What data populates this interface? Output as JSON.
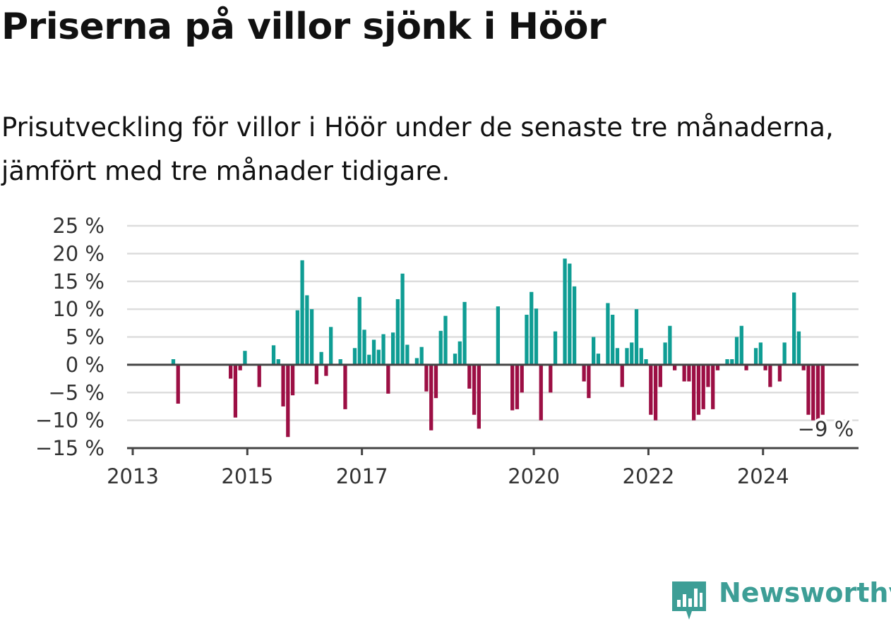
{
  "title": "Priserna på villor sjönk i Höör",
  "subtitle": "Prisutveckling för villor i Höör under de senaste tre månaderna, jämfört med tre månader tidigare.",
  "brand": {
    "name": "Newsworthy",
    "color": "#3d9e96"
  },
  "colors": {
    "positive": "#0f9d94",
    "negative": "#9c0f44",
    "grid": "#dddddd",
    "axis": "#444444"
  },
  "chart_data": {
    "type": "bar",
    "y_unit": "%",
    "ylim": [
      -15,
      25
    ],
    "y_ticks": [
      25,
      20,
      15,
      10,
      5,
      0,
      -5,
      -10,
      -15
    ],
    "y_tick_labels": [
      "25 %",
      "20 %",
      "15 %",
      "10 %",
      "5 %",
      "0 %",
      "−5 %",
      "−10 %",
      "−15 %"
    ],
    "x_ticks": [
      "2013",
      "2015",
      "2017",
      "2020",
      "2022",
      "2024"
    ],
    "grid": true,
    "last_value_label": "−9 %",
    "series": [
      {
        "values": [
          {
            "date": "2013-09",
            "value": 1
          },
          {
            "date": "2013-10",
            "value": -7
          },
          {
            "date": "2014-09",
            "value": -2.5
          },
          {
            "date": "2014-10",
            "value": -9.5
          },
          {
            "date": "2014-11",
            "value": -1
          },
          {
            "date": "2014-12",
            "value": 2.5
          },
          {
            "date": "2015-03",
            "value": -4
          },
          {
            "date": "2015-06",
            "value": 3.5
          },
          {
            "date": "2015-07",
            "value": 1
          },
          {
            "date": "2015-08",
            "value": -7.5
          },
          {
            "date": "2015-09",
            "value": -13
          },
          {
            "date": "2015-10",
            "value": -5.5
          },
          {
            "date": "2015-11",
            "value": 9.8
          },
          {
            "date": "2015-12",
            "value": 18.8
          },
          {
            "date": "2016-01",
            "value": 12.5
          },
          {
            "date": "2016-02",
            "value": 10
          },
          {
            "date": "2016-03",
            "value": -3.5
          },
          {
            "date": "2016-04",
            "value": 2.3
          },
          {
            "date": "2016-05",
            "value": -2
          },
          {
            "date": "2016-06",
            "value": 6.8
          },
          {
            "date": "2016-08",
            "value": 1
          },
          {
            "date": "2016-09",
            "value": -8
          },
          {
            "date": "2016-11",
            "value": 3
          },
          {
            "date": "2016-12",
            "value": 12.2
          },
          {
            "date": "2017-01",
            "value": 6.3
          },
          {
            "date": "2017-02",
            "value": 1.8
          },
          {
            "date": "2017-03",
            "value": 4.5
          },
          {
            "date": "2017-04",
            "value": 2.7
          },
          {
            "date": "2017-05",
            "value": 5.5
          },
          {
            "date": "2017-06",
            "value": -5.2
          },
          {
            "date": "2017-07",
            "value": 5.8
          },
          {
            "date": "2017-08",
            "value": 11.8
          },
          {
            "date": "2017-09",
            "value": 16.4
          },
          {
            "date": "2017-10",
            "value": 3.6
          },
          {
            "date": "2017-12",
            "value": 1.2
          },
          {
            "date": "2018-01",
            "value": 3.2
          },
          {
            "date": "2018-02",
            "value": -4.8
          },
          {
            "date": "2018-03",
            "value": -11.8
          },
          {
            "date": "2018-04",
            "value": -6
          },
          {
            "date": "2018-05",
            "value": 6.1
          },
          {
            "date": "2018-06",
            "value": 8.8
          },
          {
            "date": "2018-08",
            "value": 2
          },
          {
            "date": "2018-09",
            "value": 4.2
          },
          {
            "date": "2018-10",
            "value": 11.3
          },
          {
            "date": "2018-11",
            "value": -4.3
          },
          {
            "date": "2018-12",
            "value": -9
          },
          {
            "date": "2019-01",
            "value": -11.5
          },
          {
            "date": "2019-05",
            "value": 10.5
          },
          {
            "date": "2019-08",
            "value": -8.2
          },
          {
            "date": "2019-09",
            "value": -8
          },
          {
            "date": "2019-10",
            "value": -5
          },
          {
            "date": "2019-11",
            "value": 9
          },
          {
            "date": "2019-12",
            "value": 13.1
          },
          {
            "date": "2020-01",
            "value": 10.1
          },
          {
            "date": "2020-02",
            "value": -10
          },
          {
            "date": "2020-04",
            "value": -5
          },
          {
            "date": "2020-05",
            "value": 6
          },
          {
            "date": "2020-07",
            "value": 19.1
          },
          {
            "date": "2020-08",
            "value": 18.2
          },
          {
            "date": "2020-09",
            "value": 14.1
          },
          {
            "date": "2020-11",
            "value": -3
          },
          {
            "date": "2020-12",
            "value": -6
          },
          {
            "date": "2021-01",
            "value": 5
          },
          {
            "date": "2021-02",
            "value": 2
          },
          {
            "date": "2021-04",
            "value": 11.1
          },
          {
            "date": "2021-05",
            "value": 9
          },
          {
            "date": "2021-06",
            "value": 3
          },
          {
            "date": "2021-07",
            "value": -4
          },
          {
            "date": "2021-08",
            "value": 3
          },
          {
            "date": "2021-09",
            "value": 4
          },
          {
            "date": "2021-10",
            "value": 10
          },
          {
            "date": "2021-11",
            "value": 3
          },
          {
            "date": "2021-12",
            "value": 1
          },
          {
            "date": "2022-01",
            "value": -9
          },
          {
            "date": "2022-02",
            "value": -10
          },
          {
            "date": "2022-03",
            "value": -4
          },
          {
            "date": "2022-04",
            "value": 4
          },
          {
            "date": "2022-05",
            "value": 7
          },
          {
            "date": "2022-06",
            "value": -1
          },
          {
            "date": "2022-08",
            "value": -3
          },
          {
            "date": "2022-09",
            "value": -3
          },
          {
            "date": "2022-10",
            "value": -10
          },
          {
            "date": "2022-11",
            "value": -9
          },
          {
            "date": "2022-12",
            "value": -8
          },
          {
            "date": "2023-01",
            "value": -4
          },
          {
            "date": "2023-02",
            "value": -8
          },
          {
            "date": "2023-03",
            "value": -1
          },
          {
            "date": "2023-05",
            "value": 1
          },
          {
            "date": "2023-06",
            "value": 1
          },
          {
            "date": "2023-07",
            "value": 5
          },
          {
            "date": "2023-08",
            "value": 7
          },
          {
            "date": "2023-09",
            "value": -1
          },
          {
            "date": "2023-11",
            "value": 3
          },
          {
            "date": "2023-12",
            "value": 4
          },
          {
            "date": "2024-01",
            "value": -1
          },
          {
            "date": "2024-02",
            "value": -4
          },
          {
            "date": "2024-04",
            "value": -3
          },
          {
            "date": "2024-05",
            "value": 4
          },
          {
            "date": "2024-07",
            "value": 13
          },
          {
            "date": "2024-08",
            "value": 6
          },
          {
            "date": "2024-09",
            "value": -1
          },
          {
            "date": "2024-10",
            "value": -9
          },
          {
            "date": "2024-11",
            "value": -10
          },
          {
            "date": "2024-12",
            "value": -10
          },
          {
            "date": "2025-01",
            "value": -9
          }
        ]
      }
    ]
  }
}
